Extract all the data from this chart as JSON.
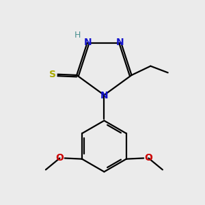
{
  "bg_color": "#ebebeb",
  "bond_color": "#000000",
  "N_color": "#1414cc",
  "S_color": "#aaaa00",
  "O_color": "#cc0000",
  "H_color": "#4a9090",
  "font_size": 10,
  "bond_width": 1.6,
  "figsize": [
    3.0,
    3.0
  ],
  "dpi": 100,
  "xlim": [
    -0.6,
    0.62
  ],
  "ylim": [
    -0.48,
    0.6
  ]
}
